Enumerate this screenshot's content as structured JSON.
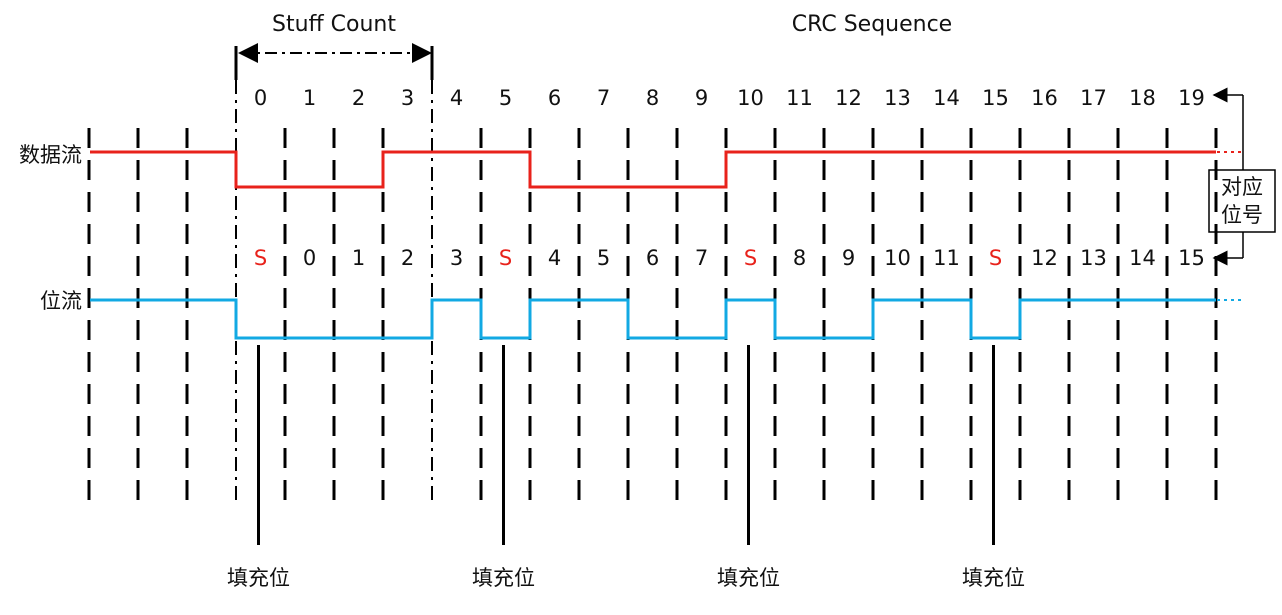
{
  "labels": {
    "stuff_count": "Stuff Count",
    "crc_sequence": "CRC Sequence",
    "data_stream": "数据流",
    "bit_stream": "位流",
    "correspond_line1": "对应",
    "correspond_line2": "位号",
    "stuff_bit": "填充位"
  },
  "colors": {
    "data_stream": "#e8221b",
    "bit_stream": "#12a9e3",
    "stuff_marker": "#e8221b",
    "text": "#111111"
  },
  "data_bit_numbers": [
    "0",
    "1",
    "2",
    "3",
    "4",
    "5",
    "6",
    "7",
    "8",
    "9",
    "10",
    "11",
    "12",
    "13",
    "14",
    "15",
    "16",
    "17",
    "18",
    "19"
  ],
  "data_levels": [
    0,
    0,
    0,
    1,
    1,
    1,
    0,
    0,
    0,
    0,
    1,
    1,
    1,
    1,
    1,
    1,
    1,
    1,
    1,
    1
  ],
  "stream_bits": [
    {
      "label": "S",
      "stuff": true,
      "level": 0
    },
    {
      "label": "0",
      "stuff": false,
      "level": 0
    },
    {
      "label": "1",
      "stuff": false,
      "level": 0
    },
    {
      "label": "2",
      "stuff": false,
      "level": 0
    },
    {
      "label": "3",
      "stuff": false,
      "level": 1
    },
    {
      "label": "S",
      "stuff": true,
      "level": 0
    },
    {
      "label": "4",
      "stuff": false,
      "level": 1
    },
    {
      "label": "5",
      "stuff": false,
      "level": 1
    },
    {
      "label": "6",
      "stuff": false,
      "level": 0
    },
    {
      "label": "7",
      "stuff": false,
      "level": 0
    },
    {
      "label": "S",
      "stuff": true,
      "level": 1
    },
    {
      "label": "8",
      "stuff": false,
      "level": 0
    },
    {
      "label": "9",
      "stuff": false,
      "level": 0
    },
    {
      "label": "10",
      "stuff": false,
      "level": 1
    },
    {
      "label": "11",
      "stuff": false,
      "level": 1
    },
    {
      "label": "S",
      "stuff": true,
      "level": 0
    },
    {
      "label": "12",
      "stuff": false,
      "level": 1
    },
    {
      "label": "13",
      "stuff": false,
      "level": 1
    },
    {
      "label": "14",
      "stuff": false,
      "level": 1
    },
    {
      "label": "15",
      "stuff": false,
      "level": 1
    }
  ],
  "stuff_count_bits": [
    "0",
    "1",
    "2",
    "3"
  ]
}
